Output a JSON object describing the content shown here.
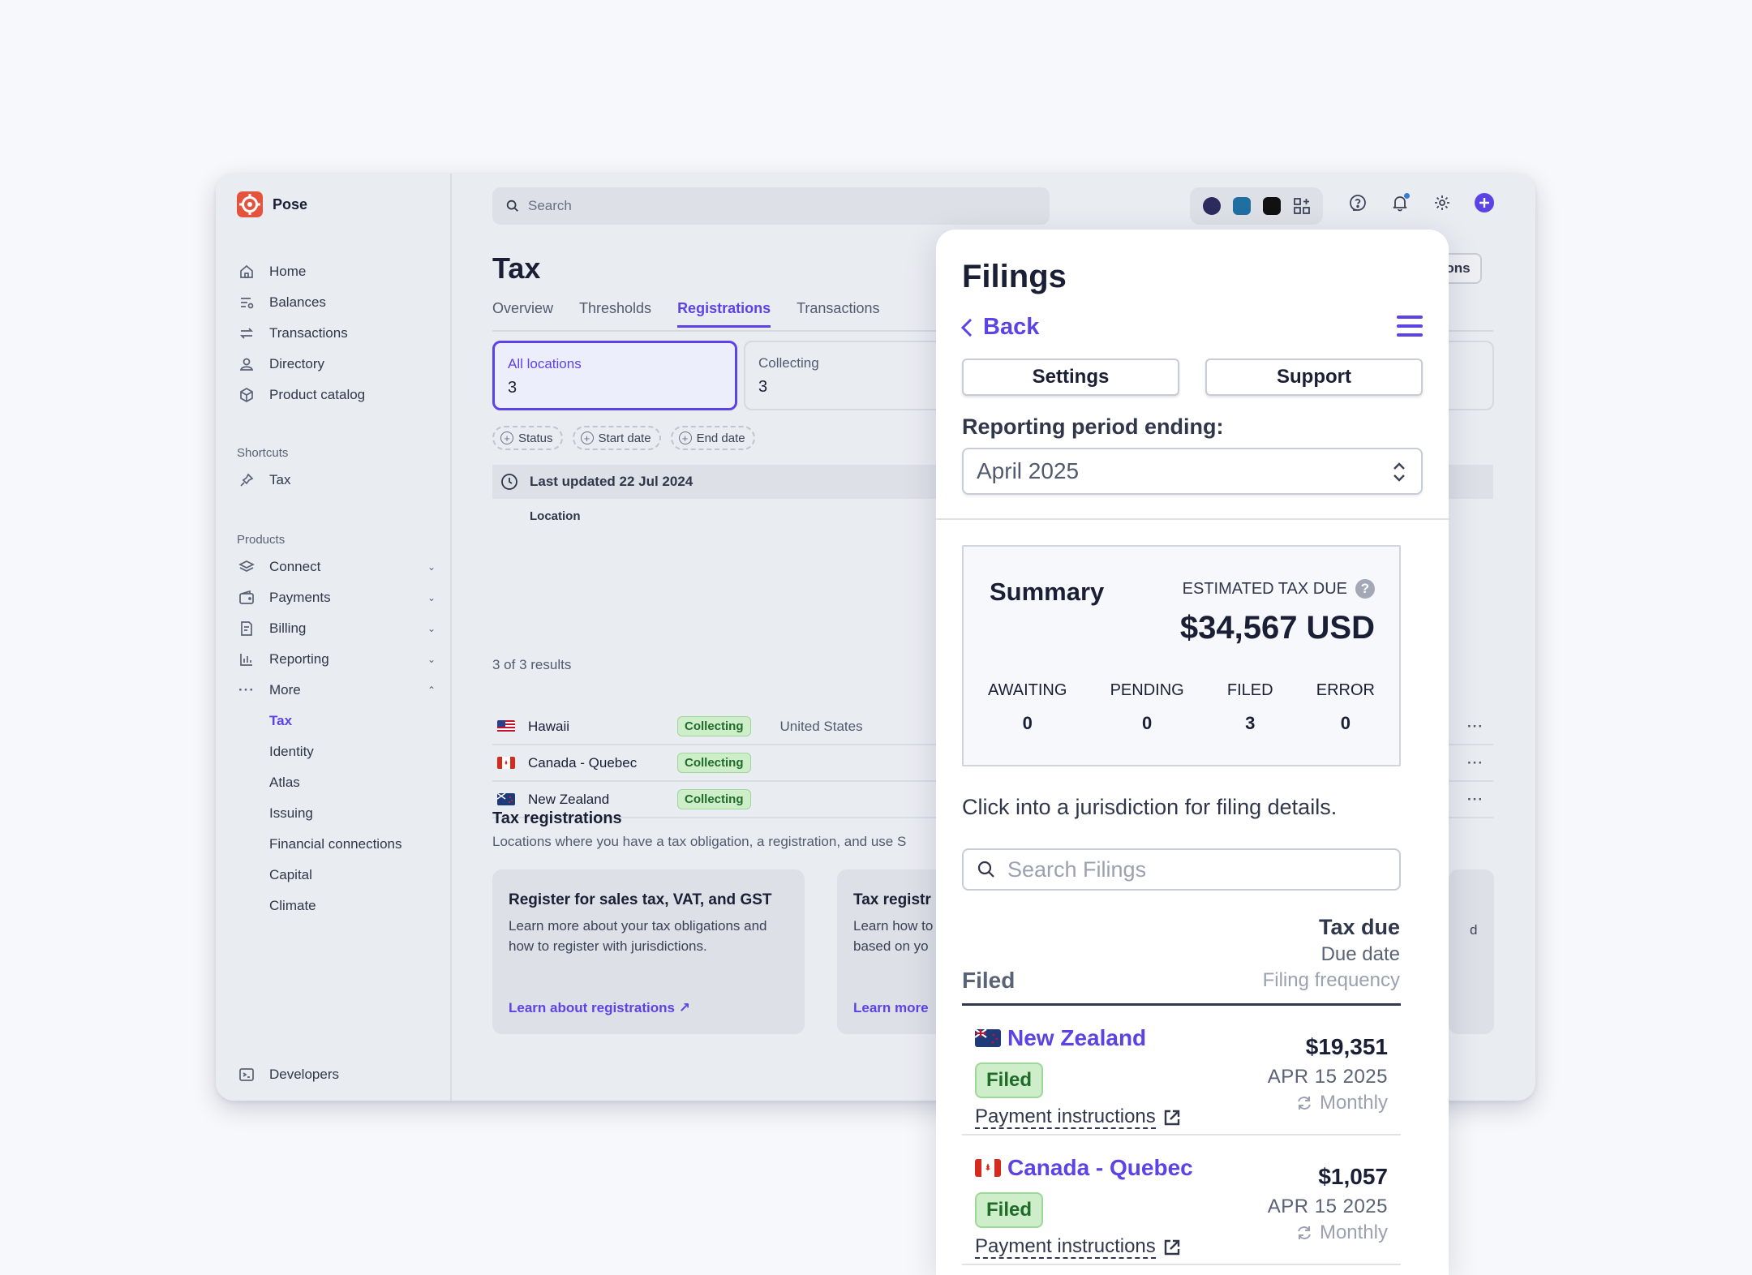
{
  "brand": {
    "name": "Pose"
  },
  "search": {
    "placeholder": "Search"
  },
  "sidebar": {
    "items": [
      {
        "label": "Home",
        "icon": "home-icon"
      },
      {
        "label": "Balances",
        "icon": "balances-icon"
      },
      {
        "label": "Transactions",
        "icon": "transactions-icon"
      },
      {
        "label": "Directory",
        "icon": "person-icon"
      },
      {
        "label": "Product catalog",
        "icon": "box-icon"
      }
    ],
    "shortcuts_label": "Shortcuts",
    "shortcuts": [
      {
        "label": "Tax",
        "icon": "pin-icon"
      }
    ],
    "products_label": "Products",
    "products": [
      {
        "label": "Connect",
        "icon": "layers-icon"
      },
      {
        "label": "Payments",
        "icon": "wallet-icon"
      },
      {
        "label": "Billing",
        "icon": "billing-icon"
      },
      {
        "label": "Reporting",
        "icon": "chart-icon"
      },
      {
        "label": "More",
        "icon": "ellipsis-icon"
      }
    ],
    "more_items": [
      {
        "label": "Tax"
      },
      {
        "label": "Identity"
      },
      {
        "label": "Atlas"
      },
      {
        "label": "Issuing"
      },
      {
        "label": "Financial connections"
      },
      {
        "label": "Capital"
      },
      {
        "label": "Climate"
      }
    ],
    "developers": "Developers"
  },
  "main": {
    "title": "Tax",
    "tabs": [
      "Overview",
      "Thresholds",
      "Registrations",
      "Transactions"
    ],
    "active_tab": "Registrations",
    "header_button_partial": "tions",
    "cards": [
      {
        "label": "All locations",
        "count": "3"
      },
      {
        "label": "Collecting",
        "count": "3"
      }
    ],
    "filters": [
      "Status",
      "Start date",
      "End date"
    ],
    "last_updated": "Last updated 22 Jul 2024",
    "column_location": "Location",
    "rows": [
      {
        "name": "Hawaii",
        "status": "Collecting",
        "country": "United States"
      },
      {
        "name": "Canada - Quebec",
        "status": "Collecting",
        "country": ""
      },
      {
        "name": "New Zealand",
        "status": "Collecting",
        "country": ""
      }
    ],
    "results": "3 of 3 results",
    "registrations_title": "Tax registrations",
    "registrations_sub": "Locations where you have a tax obligation, a registration, and use S",
    "info_cards": [
      {
        "title": "Register for sales tax, VAT, and GST",
        "body": "Learn more about your tax obligations and how to register with jurisdictions.",
        "link": "Learn about registrations"
      },
      {
        "title": "Tax registr",
        "body": "Learn how to based on yo",
        "link": "Learn more"
      }
    ],
    "partial_text_right": "d"
  },
  "filings": {
    "title": "Filings",
    "back": "Back",
    "settings": "Settings",
    "support": "Support",
    "period_label": "Reporting period ending:",
    "period_value": "April 2025",
    "summary": {
      "title": "Summary",
      "estimated_label": "ESTIMATED TAX DUE",
      "amount": "$34,567 USD",
      "stats": [
        {
          "label": "AWAITING",
          "value": "0"
        },
        {
          "label": "PENDING",
          "value": "0"
        },
        {
          "label": "FILED",
          "value": "3"
        },
        {
          "label": "ERROR",
          "value": "0"
        }
      ]
    },
    "hint": "Click into a jurisdiction for filing details.",
    "search_placeholder": "Search Filings",
    "header": {
      "tax_due": "Tax due",
      "due_date": "Due date",
      "filing_frequency": "Filing frequency",
      "filed": "Filed"
    },
    "items": [
      {
        "name": "New Zealand",
        "status": "Filed",
        "payment": "Payment instructions",
        "amount": "$19,351",
        "due": "APR 15 2025",
        "frequency": "Monthly"
      },
      {
        "name": "Canada - Quebec",
        "status": "Filed",
        "payment": "Payment instructions",
        "amount": "$1,057",
        "due": "APR 15 2025",
        "frequency": "Monthly"
      }
    ]
  },
  "colors": {
    "accent": "#5b43e6",
    "success_bg": "#cdeec9",
    "success_text": "#1f6b2a"
  }
}
